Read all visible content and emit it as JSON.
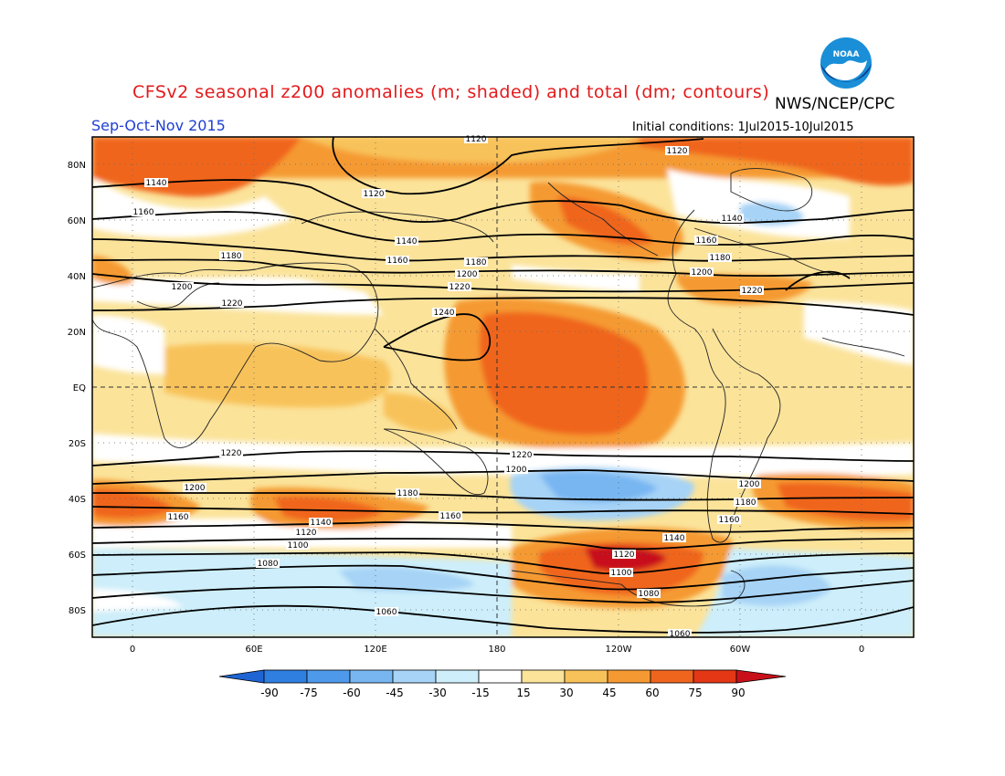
{
  "title": "CFSv2 seasonal z200 anomalies (m; shaded) and total (dm; contours)",
  "agency": "NWS/NCEP/CPC",
  "season": "Sep-Oct-Nov 2015",
  "initial_conditions": "Initial conditions: 1Jul2015-10Jul2015",
  "logo_text": "NOAA",
  "lat_labels": [
    "80N",
    "60N",
    "40N",
    "20N",
    "EQ",
    "20S",
    "40S",
    "60S",
    "80S"
  ],
  "lon_labels": [
    "0",
    "60E",
    "120E",
    "180",
    "120W",
    "60W",
    "0"
  ],
  "colorbar": {
    "ticks": [
      "-90",
      "-75",
      "-60",
      "-45",
      "-30",
      "-15",
      "15",
      "30",
      "45",
      "60",
      "75",
      "90"
    ],
    "colors": [
      "#1e64d2",
      "#2f7fe0",
      "#4f99ea",
      "#78b6f2",
      "#a6d3f6",
      "#cdeefa",
      "#ffffff",
      "#fbe39a",
      "#f8c25a",
      "#f59a32",
      "#f0651e",
      "#e33716",
      "#c8101a"
    ]
  },
  "contour_labels": [
    "1120",
    "1120",
    "1120",
    "1140",
    "1140",
    "1140",
    "1160",
    "1160",
    "1160",
    "1180",
    "1180",
    "1180",
    "1200",
    "1200",
    "1200",
    "1220",
    "1220",
    "1220",
    "1240",
    "1220",
    "1220",
    "1200",
    "1200",
    "1200",
    "1180",
    "1180",
    "1160",
    "1160",
    "1160",
    "1140",
    "1140",
    "1120",
    "1120",
    "1100",
    "1100",
    "1080",
    "1080",
    "1060",
    "1060"
  ],
  "palette": {
    "frame": "#000000",
    "title_red": "#e31a1c",
    "season_blue": "#1f3fd1"
  }
}
